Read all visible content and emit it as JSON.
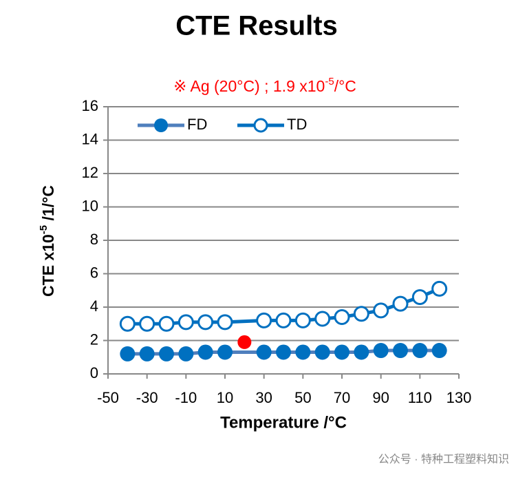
{
  "chart_data": {
    "type": "line",
    "title": "CTE Results",
    "annotation": {
      "prefix": "※ Ag (20°C) ; 1.9 x10",
      "sup": "-5",
      "suffix": "/°C",
      "color": "#ff0000"
    },
    "annotation_point": {
      "x": 20,
      "y": 1.9,
      "color": "#ff0000"
    },
    "x_label": "Temperature /°C",
    "y_label": {
      "prefix": "CTE x10",
      "sup": "-5",
      "suffix": " /1/°C"
    },
    "xlim": [
      -50,
      130
    ],
    "xticks": [
      -50,
      -30,
      -10,
      10,
      30,
      50,
      70,
      90,
      110,
      130
    ],
    "ylim": [
      0,
      16
    ],
    "yticks": [
      0,
      2,
      4,
      6,
      8,
      10,
      12,
      14,
      16
    ],
    "grid": true,
    "series": [
      {
        "name": "FD",
        "color": "#0070c0",
        "line_color": "#4f7fbd",
        "marker": "filled",
        "x": [
          -40,
          -30,
          -20,
          -10,
          0,
          10,
          30,
          40,
          50,
          60,
          70,
          80,
          90,
          100,
          110,
          120
        ],
        "values": [
          1.2,
          1.2,
          1.2,
          1.2,
          1.3,
          1.3,
          1.3,
          1.3,
          1.3,
          1.3,
          1.3,
          1.3,
          1.4,
          1.4,
          1.4,
          1.4
        ]
      },
      {
        "name": "TD",
        "color": "#0070c0",
        "line_color": "#0070c0",
        "marker": "open",
        "x": [
          -40,
          -30,
          -20,
          -10,
          0,
          10,
          30,
          40,
          50,
          60,
          70,
          80,
          90,
          100,
          110,
          120
        ],
        "values": [
          3.0,
          3.0,
          3.0,
          3.1,
          3.1,
          3.1,
          3.2,
          3.2,
          3.2,
          3.3,
          3.4,
          3.6,
          3.8,
          4.2,
          4.6,
          5.1
        ]
      }
    ]
  },
  "watermark": "公众号 · 特种工程塑料知识"
}
